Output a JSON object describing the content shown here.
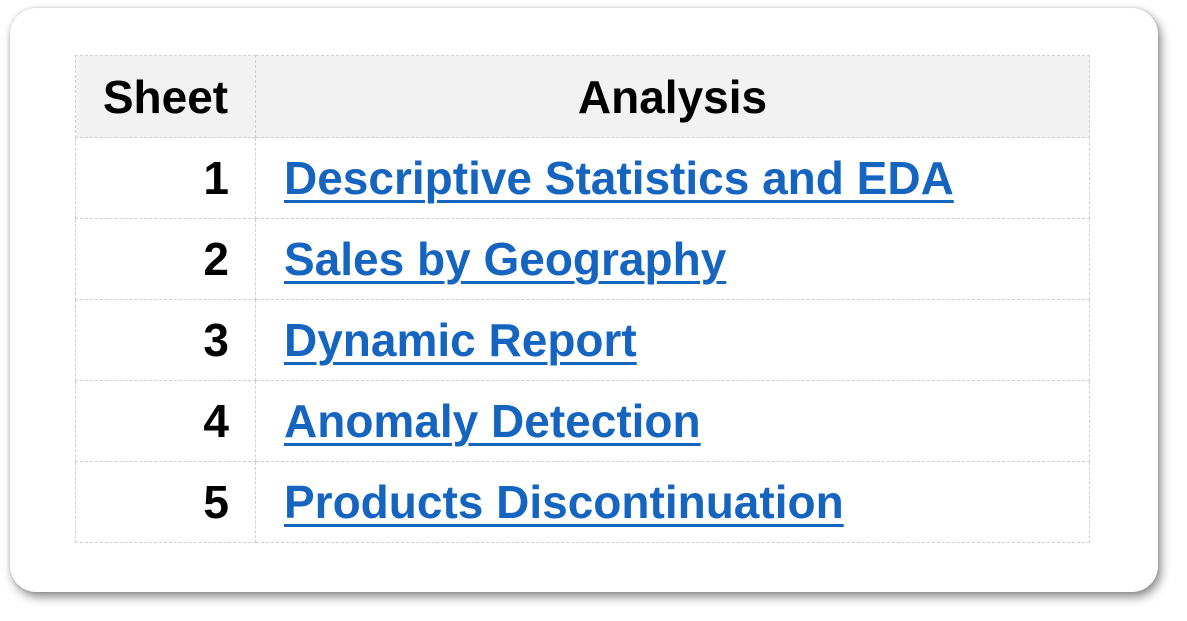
{
  "table": {
    "headers": {
      "sheet": "Sheet",
      "analysis": "Analysis"
    },
    "rows": [
      {
        "sheet": "1",
        "analysis": "Descriptive Statistics and EDA"
      },
      {
        "sheet": "2",
        "analysis": "Sales by Geography"
      },
      {
        "sheet": "3",
        "analysis": "Dynamic Report"
      },
      {
        "sheet": "4",
        "analysis": "Anomaly Detection"
      },
      {
        "sheet": "5",
        "analysis": "Products Discontinuation"
      }
    ]
  },
  "colors": {
    "link": "#1565c0",
    "header_bg": "#f2f2f2",
    "grid": "#cfcfcf"
  }
}
